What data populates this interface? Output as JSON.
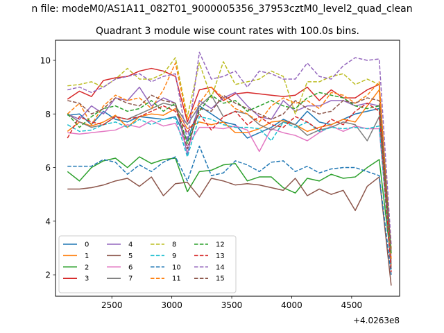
{
  "chart_data": {
    "type": "line",
    "suptitle": "n file: modeM0/AS1A11_082T01_9000005356_37953cztM0_level2_quad_clean",
    "title": "Quadrant 3 module wise count rates with 100.0s bins.",
    "xlabel": "",
    "ylabel": "",
    "x_offset_label": "+4.0263e8",
    "xlim": [
      2030,
      4900
    ],
    "ylim": [
      1.2,
      10.75
    ],
    "xticks": [
      2500,
      3000,
      3500,
      4000,
      4500
    ],
    "xtick_labels": [
      "2500",
      "3000",
      "3500",
      "4000",
      "4500"
    ],
    "yticks": [
      2,
      4,
      6,
      8,
      10
    ],
    "ytick_labels": [
      "2",
      "4",
      "6",
      "8",
      "10"
    ],
    "grid": false,
    "legend_position": "lower-left",
    "legend_columns": 4,
    "x": [
      2130,
      2230,
      2330,
      2430,
      2530,
      2630,
      2730,
      2830,
      2930,
      3030,
      3130,
      3230,
      3330,
      3430,
      3530,
      3630,
      3730,
      3830,
      3930,
      4030,
      4130,
      4230,
      4330,
      4430,
      4530,
      4630,
      4730,
      4830
    ],
    "series": [
      {
        "name": "0",
        "color": "#1f77b4",
        "linestyle": "solid",
        "values": [
          7.95,
          8.0,
          7.6,
          8.1,
          7.8,
          7.7,
          7.9,
          7.85,
          7.8,
          7.9,
          7.0,
          8.3,
          8.0,
          7.7,
          7.6,
          7.1,
          7.3,
          7.5,
          7.8,
          7.6,
          8.1,
          7.7,
          7.6,
          7.8,
          8.0,
          8.1,
          8.2,
          2.2
        ]
      },
      {
        "name": "1",
        "color": "#ff7f0e",
        "linestyle": "solid",
        "values": [
          7.35,
          7.7,
          7.55,
          7.7,
          7.95,
          7.5,
          7.9,
          8.0,
          7.95,
          8.2,
          7.45,
          7.7,
          7.6,
          7.7,
          7.3,
          7.3,
          7.45,
          7.7,
          7.75,
          7.6,
          7.35,
          7.5,
          7.6,
          7.8,
          7.7,
          8.3,
          8.9,
          2.3
        ]
      },
      {
        "name": "2",
        "color": "#2ca02c",
        "linestyle": "solid",
        "values": [
          5.85,
          5.5,
          6.0,
          6.25,
          6.35,
          6.0,
          6.4,
          6.15,
          6.3,
          6.35,
          5.1,
          5.85,
          5.9,
          6.1,
          6.15,
          5.5,
          5.65,
          5.65,
          5.25,
          5.05,
          5.6,
          5.5,
          5.75,
          5.6,
          5.65,
          6.0,
          6.3,
          2.5
        ]
      },
      {
        "name": "3",
        "color": "#d62728",
        "linestyle": "solid",
        "values": [
          8.55,
          8.85,
          8.65,
          9.25,
          9.35,
          9.4,
          9.6,
          9.7,
          9.6,
          9.4,
          7.7,
          8.9,
          9.0,
          8.5,
          8.75,
          8.8,
          8.75,
          8.7,
          8.65,
          8.7,
          9.0,
          8.5,
          8.9,
          8.6,
          8.6,
          8.9,
          9.1,
          2.8
        ]
      },
      {
        "name": "4",
        "color": "#9467bd",
        "linestyle": "solid",
        "values": [
          8.0,
          7.8,
          8.3,
          8.0,
          8.6,
          8.5,
          9.0,
          8.3,
          8.6,
          8.4,
          6.5,
          8.5,
          8.2,
          8.6,
          8.8,
          8.3,
          7.9,
          7.8,
          8.5,
          8.1,
          8.3,
          8.3,
          8.5,
          8.5,
          8.3,
          8.4,
          8.3,
          2.6
        ]
      },
      {
        "name": "5",
        "color": "#8c564b",
        "linestyle": "solid",
        "values": [
          5.2,
          5.2,
          5.25,
          5.35,
          5.5,
          5.6,
          5.3,
          5.65,
          4.95,
          5.4,
          5.45,
          4.9,
          5.6,
          5.5,
          5.35,
          5.4,
          5.35,
          5.25,
          5.15,
          5.6,
          4.95,
          5.2,
          5.0,
          5.15,
          4.4,
          5.3,
          5.65,
          1.6
        ]
      },
      {
        "name": "6",
        "color": "#e377c2",
        "linestyle": "solid",
        "values": [
          7.3,
          7.25,
          7.3,
          7.35,
          7.4,
          7.6,
          7.5,
          7.75,
          7.55,
          7.65,
          6.8,
          7.5,
          7.5,
          7.45,
          7.55,
          7.4,
          6.6,
          7.45,
          7.3,
          7.2,
          7.0,
          7.3,
          7.55,
          7.35,
          7.55,
          7.45,
          7.45,
          2.5
        ]
      },
      {
        "name": "7",
        "color": "#7f7f7f",
        "linestyle": "solid",
        "values": [
          8.0,
          7.7,
          7.5,
          7.6,
          7.9,
          7.8,
          8.0,
          8.2,
          8.4,
          8.3,
          7.6,
          8.3,
          8.7,
          7.9,
          8.1,
          8.0,
          7.6,
          7.4,
          7.7,
          7.6,
          7.2,
          7.4,
          7.5,
          7.7,
          7.6,
          7.0,
          7.9,
          2.4
        ]
      },
      {
        "name": "8",
        "color": "#bcbd22",
        "linestyle": "dashed",
        "values": [
          9.05,
          9.1,
          9.2,
          9.0,
          9.3,
          9.7,
          9.3,
          9.3,
          9.5,
          10.1,
          7.9,
          9.9,
          8.6,
          9.95,
          9.1,
          9.2,
          9.3,
          9.6,
          9.4,
          8.0,
          9.2,
          9.2,
          9.4,
          9.5,
          9.1,
          9.3,
          9.1,
          3.0
        ]
      },
      {
        "name": "9",
        "color": "#17becf",
        "linestyle": "dashed",
        "values": [
          7.6,
          7.35,
          7.4,
          7.6,
          7.7,
          7.5,
          7.8,
          7.6,
          7.8,
          7.85,
          6.4,
          7.9,
          7.8,
          7.6,
          7.5,
          7.5,
          7.45,
          7.0,
          7.7,
          7.5,
          7.7,
          7.35,
          7.5,
          7.45,
          7.5,
          7.45,
          7.55,
          2.2
        ]
      },
      {
        "name": "10",
        "color": "#1f77b4",
        "linestyle": "dashed",
        "values": [
          6.05,
          6.05,
          6.05,
          6.3,
          6.2,
          5.75,
          6.1,
          5.85,
          6.2,
          6.4,
          5.5,
          6.8,
          5.7,
          5.8,
          6.25,
          6.1,
          5.85,
          6.2,
          6.25,
          5.85,
          6.05,
          5.8,
          5.95,
          6.0,
          6.0,
          5.85,
          5.7,
          2.0
        ]
      },
      {
        "name": "11",
        "color": "#ff7f0e",
        "linestyle": "dashed",
        "values": [
          8.0,
          8.4,
          7.6,
          8.3,
          8.7,
          8.5,
          8.6,
          8.2,
          8.9,
          9.9,
          7.8,
          8.4,
          9.0,
          8.6,
          8.2,
          8.0,
          7.7,
          8.3,
          8.6,
          8.4,
          8.5,
          8.2,
          8.8,
          8.7,
          8.4,
          8.7,
          9.2,
          2.6
        ]
      },
      {
        "name": "12",
        "color": "#2ca02c",
        "linestyle": "dashed",
        "values": [
          8.0,
          7.5,
          7.9,
          8.2,
          8.3,
          8.1,
          8.2,
          8.5,
          8.1,
          8.4,
          6.9,
          8.1,
          8.7,
          8.4,
          8.5,
          8.1,
          8.3,
          8.5,
          8.3,
          8.2,
          8.6,
          8.8,
          8.7,
          8.6,
          8.3,
          8.2,
          8.3,
          2.8
        ]
      },
      {
        "name": "13",
        "color": "#d62728",
        "linestyle": "dashed",
        "values": [
          7.1,
          7.9,
          7.7,
          7.6,
          7.9,
          7.8,
          7.9,
          8.1,
          8.3,
          8.1,
          7.3,
          8.0,
          7.4,
          7.9,
          8.1,
          7.6,
          7.9,
          7.6,
          7.5,
          7.9,
          7.7,
          7.4,
          7.8,
          7.6,
          8.1,
          8.4,
          8.1,
          2.1
        ]
      },
      {
        "name": "14",
        "color": "#9467bd",
        "linestyle": "dashed",
        "values": [
          8.9,
          9.0,
          8.8,
          9.0,
          9.3,
          9.4,
          9.5,
          9.2,
          9.4,
          9.5,
          7.0,
          10.3,
          9.3,
          9.4,
          9.6,
          9.0,
          9.6,
          9.5,
          9.3,
          9.3,
          9.9,
          9.4,
          9.3,
          9.8,
          10.1,
          10.0,
          10.05,
          3.1
        ]
      },
      {
        "name": "15",
        "color": "#8c564b",
        "linestyle": "dashed",
        "values": [
          8.5,
          8.4,
          8.0,
          8.2,
          8.6,
          8.4,
          8.3,
          8.7,
          8.5,
          8.4,
          6.7,
          8.2,
          8.1,
          8.7,
          8.4,
          8.2,
          8.0,
          7.8,
          8.0,
          8.5,
          8.2,
          8.0,
          8.1,
          8.5,
          8.4,
          8.6,
          8.5,
          2.9
        ]
      }
    ]
  }
}
